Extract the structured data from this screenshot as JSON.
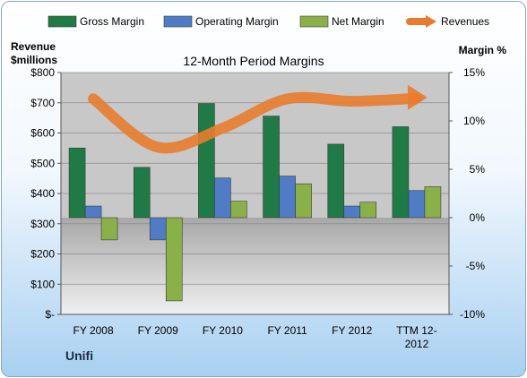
{
  "chart_data": {
    "type": "bar",
    "title": "12-Month Period Margins",
    "company": "Unifi",
    "ylabel_left": "Revenue\n$millions",
    "ylabel_right": "Margin %",
    "left_ticks": [
      "$-",
      "$100",
      "$200",
      "$300",
      "$400",
      "$500",
      "$600",
      "$700",
      "$800"
    ],
    "right_ticks": [
      "-10%",
      "-5%",
      "0%",
      "5%",
      "10%",
      "15%"
    ],
    "ylim_left": [
      0,
      800
    ],
    "ylim_right": [
      -10,
      15
    ],
    "categories": [
      "FY 2008",
      "FY 2009",
      "FY 2010",
      "FY 2011",
      "FY 2012",
      "TTM 12-\n2012"
    ],
    "series": [
      {
        "name": "Gross Margin",
        "axis": "right",
        "type": "bar",
        "color": "#1f7a45",
        "values": [
          7.2,
          5.2,
          11.8,
          10.5,
          7.6,
          9.4
        ]
      },
      {
        "name": "Operating Margin",
        "axis": "right",
        "type": "bar",
        "color": "#4f7cc4",
        "values": [
          1.2,
          -2.3,
          4.1,
          4.3,
          1.2,
          2.8
        ]
      },
      {
        "name": "Net Margin",
        "axis": "right",
        "type": "bar",
        "color": "#8ab04a",
        "values": [
          -2.3,
          -8.6,
          1.7,
          3.5,
          1.6,
          3.2
        ]
      },
      {
        "name": "Revenues",
        "axis": "left",
        "type": "line",
        "color": "#e87c2e",
        "values": [
          713,
          553,
          616,
          713,
          705,
          715
        ]
      }
    ],
    "legend_position": "top",
    "grid": true
  }
}
